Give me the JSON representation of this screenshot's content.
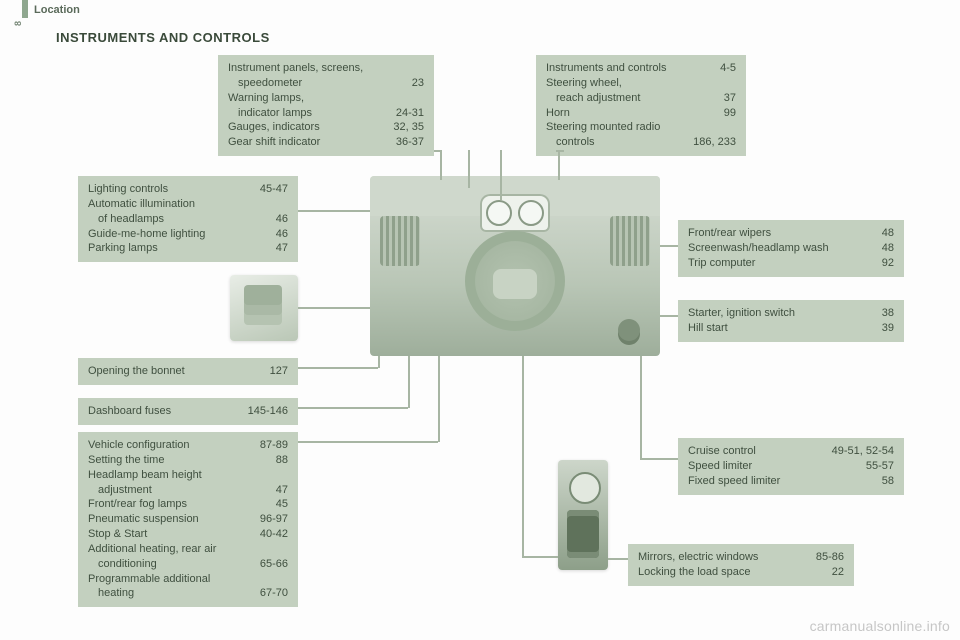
{
  "page_number": "8",
  "section_label": "Location",
  "title": "INSTRUMENTS AND CONTROLS",
  "watermark": "carmanualsonline.info",
  "boxes": {
    "instrument_panels": {
      "rows": [
        {
          "label": "Instrument panels, screens,",
          "page": ""
        },
        {
          "label": "speedometer",
          "page": "23",
          "indent": true
        },
        {
          "label": "Warning lamps,",
          "page": ""
        },
        {
          "label": "indicator lamps",
          "page": "24-31",
          "indent": true
        },
        {
          "label": "Gauges, indicators",
          "page": "32, 35"
        },
        {
          "label": "Gear shift indicator",
          "page": "36-37"
        }
      ]
    },
    "instruments_controls": {
      "rows": [
        {
          "label": "Instruments and controls",
          "page": "4-5"
        },
        {
          "label": "Steering wheel,",
          "page": ""
        },
        {
          "label": "reach adjustment",
          "page": "37",
          "indent": true
        },
        {
          "label": "Horn",
          "page": "99"
        },
        {
          "label": "Steering mounted radio",
          "page": ""
        },
        {
          "label": "controls",
          "page": "186, 233",
          "indent": true
        }
      ]
    },
    "lighting": {
      "rows": [
        {
          "label": "Lighting controls",
          "page": "45-47"
        },
        {
          "label": "Automatic illumination",
          "page": ""
        },
        {
          "label": "of headlamps",
          "page": "46",
          "indent": true
        },
        {
          "label": "Guide-me-home lighting",
          "page": "46"
        },
        {
          "label": "Parking lamps",
          "page": "47"
        }
      ]
    },
    "wipers": {
      "rows": [
        {
          "label": "Front/rear wipers",
          "page": "48"
        },
        {
          "label": "Screenwash/headlamp wash",
          "page": "48"
        },
        {
          "label": "Trip computer",
          "page": "92"
        }
      ]
    },
    "starter": {
      "rows": [
        {
          "label": "Starter, ignition switch",
          "page": "38"
        },
        {
          "label": "Hill start",
          "page": "39"
        }
      ]
    },
    "bonnet": {
      "rows": [
        {
          "label": "Opening the bonnet",
          "page": "127"
        }
      ]
    },
    "fuses": {
      "rows": [
        {
          "label": "Dashboard fuses",
          "page": "145-146"
        }
      ]
    },
    "config": {
      "rows": [
        {
          "label": "Vehicle configuration",
          "page": "87-89"
        },
        {
          "label": "Setting the time",
          "page": "88"
        },
        {
          "label": "Headlamp beam height",
          "page": ""
        },
        {
          "label": "adjustment",
          "page": "47",
          "indent": true
        },
        {
          "label": "Front/rear fog lamps",
          "page": "45"
        },
        {
          "label": "Pneumatic suspension",
          "page": "96-97"
        },
        {
          "label": "Stop & Start",
          "page": "40-42"
        },
        {
          "label": "Additional heating, rear air",
          "page": ""
        },
        {
          "label": "conditioning",
          "page": "65-66",
          "indent": true
        },
        {
          "label": "Programmable additional",
          "page": ""
        },
        {
          "label": "heating",
          "page": "67-70",
          "indent": true
        }
      ]
    },
    "cruise": {
      "rows": [
        {
          "label": "Cruise control",
          "page": "49-51, 52-54"
        },
        {
          "label": "Speed limiter",
          "page": "55-57"
        },
        {
          "label": "Fixed speed limiter",
          "page": "58"
        }
      ]
    },
    "mirrors": {
      "rows": [
        {
          "label": "Mirrors, electric windows",
          "page": "85-86"
        },
        {
          "label": "Locking the load space",
          "page": "22"
        }
      ]
    }
  },
  "layout": {
    "colors": {
      "box_bg": "#c3d0bf",
      "text": "#3f4f3f",
      "leader": "#a7b5a3"
    }
  }
}
